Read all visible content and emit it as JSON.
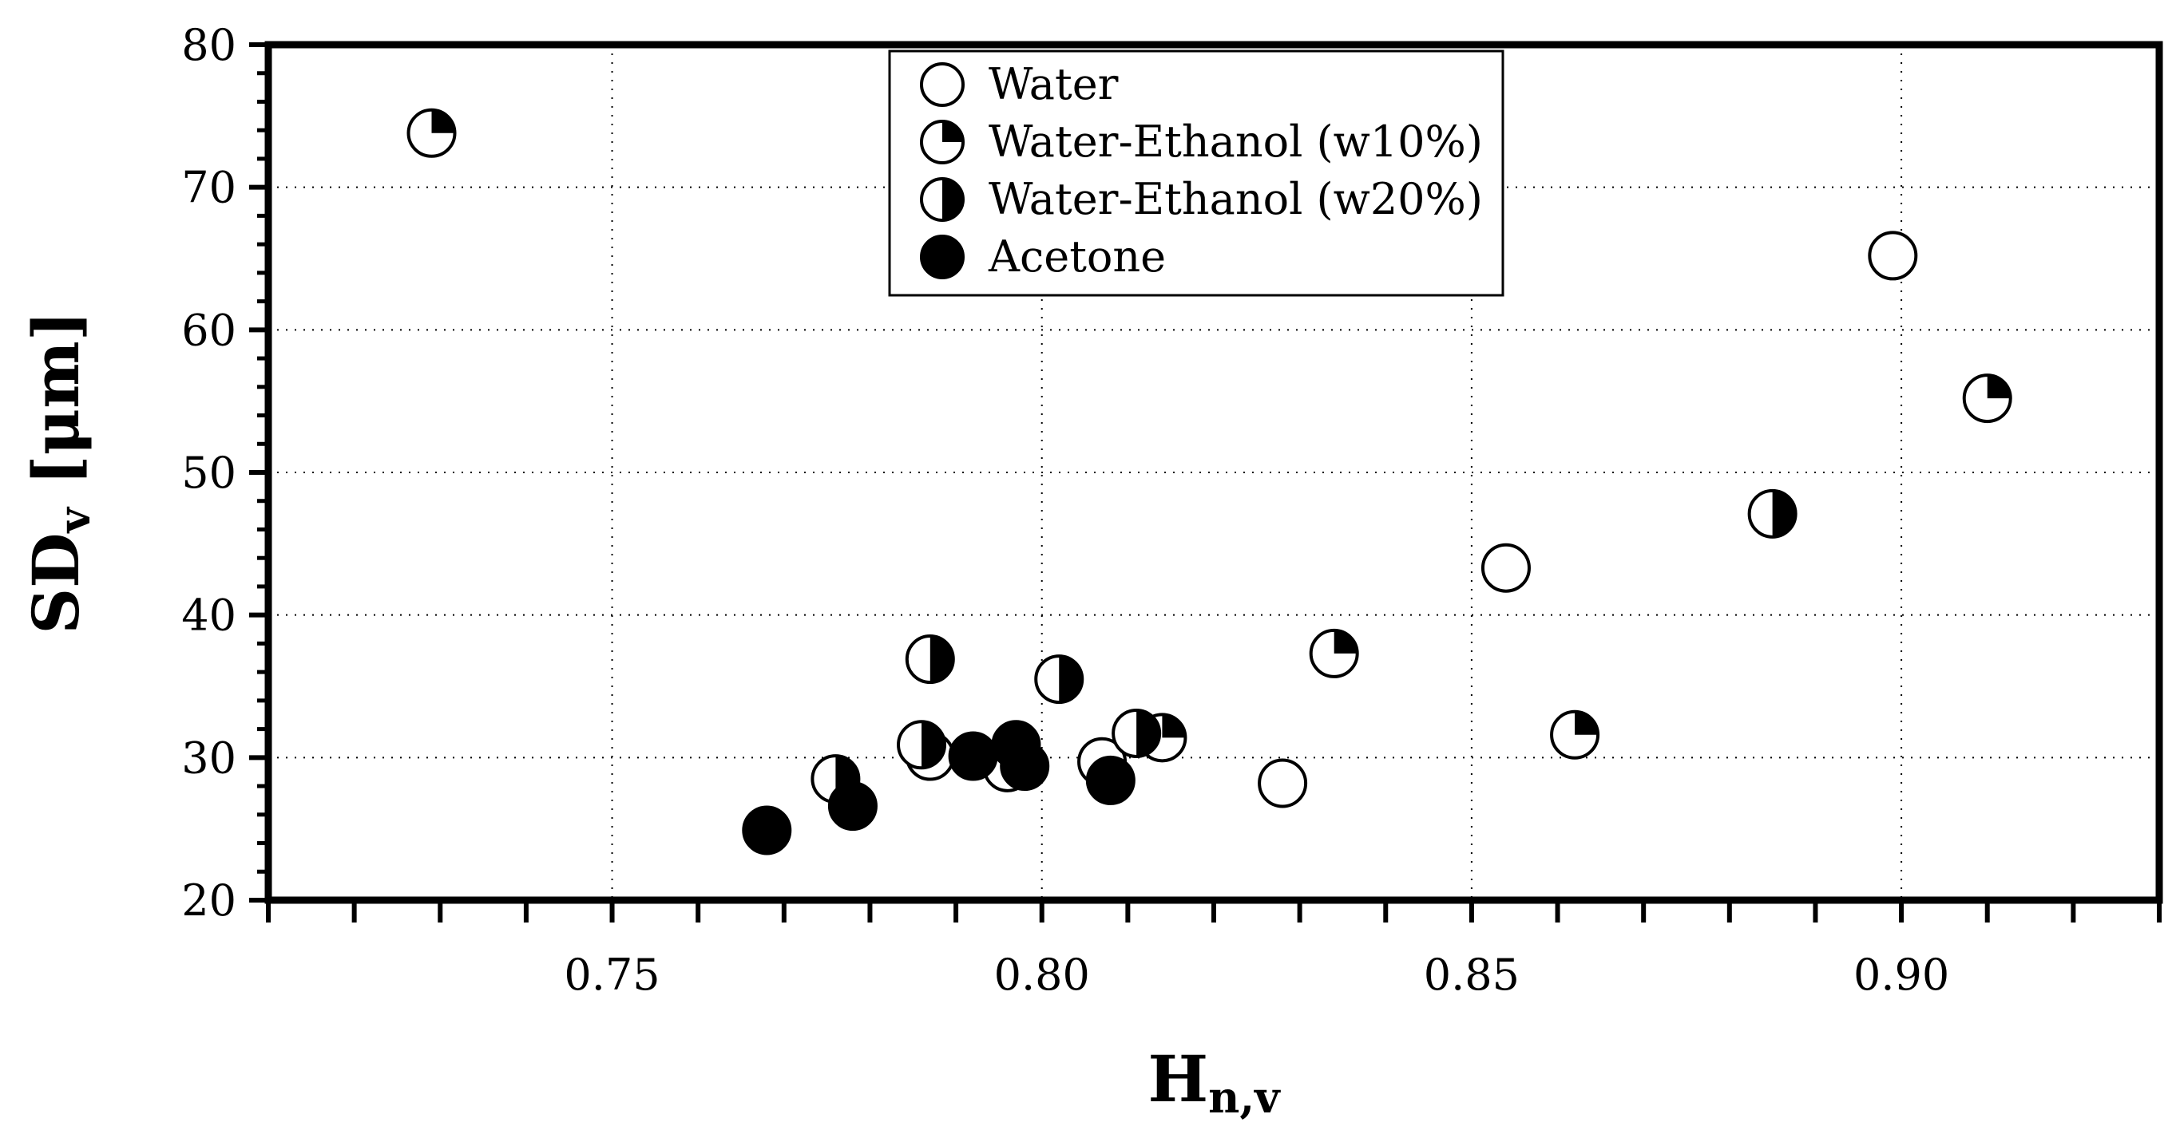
{
  "chart_data": {
    "type": "scatter",
    "title": "",
    "xlabel": "H",
    "xlabel_sub": "n,v",
    "ylabel": "SD",
    "ylabel_sub": "v",
    "ylabel_unit": " [μm]",
    "xlim": [
      0.71,
      0.93
    ],
    "ylim": [
      20,
      80
    ],
    "x_ticks": [
      0.75,
      0.8,
      0.85,
      0.9
    ],
    "x_tick_labels": [
      "0.75",
      "0.80",
      "0.85",
      "0.90"
    ],
    "y_ticks": [
      20,
      30,
      40,
      50,
      60,
      70,
      80
    ],
    "y_tick_labels": [
      "20",
      "30",
      "40",
      "50",
      "60",
      "70",
      "80"
    ],
    "grid": true,
    "legend_position": "top-center",
    "series": [
      {
        "name": "Water",
        "marker": "empty",
        "points": [
          {
            "x": 0.787,
            "y": 30.1
          },
          {
            "x": 0.796,
            "y": 29.3
          },
          {
            "x": 0.807,
            "y": 29.7
          },
          {
            "x": 0.828,
            "y": 28.2
          },
          {
            "x": 0.854,
            "y": 43.3
          },
          {
            "x": 0.899,
            "y": 65.2
          }
        ]
      },
      {
        "name": "Water-Ethanol (w10%)",
        "marker": "quarter",
        "points": [
          {
            "x": 0.729,
            "y": 73.8
          },
          {
            "x": 0.814,
            "y": 31.4
          },
          {
            "x": 0.834,
            "y": 37.3
          },
          {
            "x": 0.862,
            "y": 31.6
          },
          {
            "x": 0.91,
            "y": 55.2
          }
        ]
      },
      {
        "name": "Water-Ethanol (w20%)",
        "marker": "half",
        "points": [
          {
            "x": 0.776,
            "y": 28.5
          },
          {
            "x": 0.786,
            "y": 30.9
          },
          {
            "x": 0.787,
            "y": 36.9
          },
          {
            "x": 0.802,
            "y": 35.5
          },
          {
            "x": 0.811,
            "y": 31.7
          },
          {
            "x": 0.885,
            "y": 47.1
          }
        ]
      },
      {
        "name": "Acetone",
        "marker": "filled",
        "points": [
          {
            "x": 0.768,
            "y": 24.9
          },
          {
            "x": 0.778,
            "y": 26.6
          },
          {
            "x": 0.792,
            "y": 30.1
          },
          {
            "x": 0.797,
            "y": 30.9
          },
          {
            "x": 0.798,
            "y": 29.4
          },
          {
            "x": 0.808,
            "y": 28.4
          }
        ]
      }
    ]
  }
}
